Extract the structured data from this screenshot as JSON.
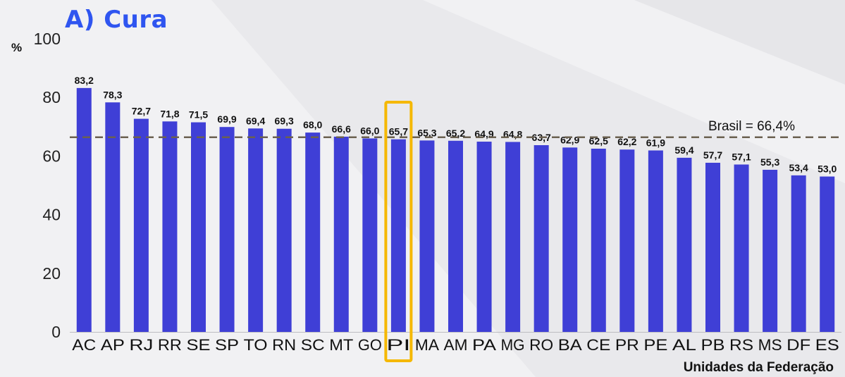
{
  "title": "A) Cura",
  "chart_data": {
    "type": "bar",
    "title": "A) Cura",
    "xlabel": "Unidades da Federação",
    "ylabel": "%",
    "ylim": [
      0,
      100
    ],
    "yticks": [
      0,
      20,
      40,
      60,
      80,
      100
    ],
    "categories": [
      "AC",
      "AP",
      "RJ",
      "RR",
      "SE",
      "SP",
      "TO",
      "RN",
      "SC",
      "MT",
      "GO",
      "PI",
      "MA",
      "AM",
      "PA",
      "MG",
      "RO",
      "BA",
      "CE",
      "PR",
      "PE",
      "AL",
      "PB",
      "RS",
      "MS",
      "DF",
      "ES"
    ],
    "values": [
      83.2,
      78.3,
      72.7,
      71.8,
      71.5,
      69.9,
      69.4,
      69.3,
      68.0,
      66.6,
      66.0,
      65.7,
      65.3,
      65.2,
      64.9,
      64.8,
      63.7,
      62.9,
      62.5,
      62.2,
      61.9,
      59.4,
      57.7,
      57.1,
      55.3,
      53.4,
      53.0
    ],
    "data_labels": [
      "83,2",
      "78,3",
      "72,7",
      "71,8",
      "71,5",
      "69,9",
      "69,4",
      "69,3",
      "68,0",
      "66,6",
      "66,0",
      "65,7",
      "65,3",
      "65,2",
      "64,9",
      "64,8",
      "63,7",
      "62,9",
      "62,5",
      "62,2",
      "61,9",
      "59,4",
      "57,7",
      "57,1",
      "55,3",
      "53,4",
      "53,0"
    ],
    "reference_line": {
      "value": 66.4,
      "label": "Brasil = 66,4%",
      "style": "dashed",
      "color": "#6b6150"
    },
    "highlight": {
      "category": "PI",
      "color": "#f5b800"
    },
    "bar_color": "#3f3fd6",
    "grid": false,
    "legend": "none"
  },
  "colors": {
    "title": "#2f55f0",
    "background": "#f1f1f3"
  }
}
